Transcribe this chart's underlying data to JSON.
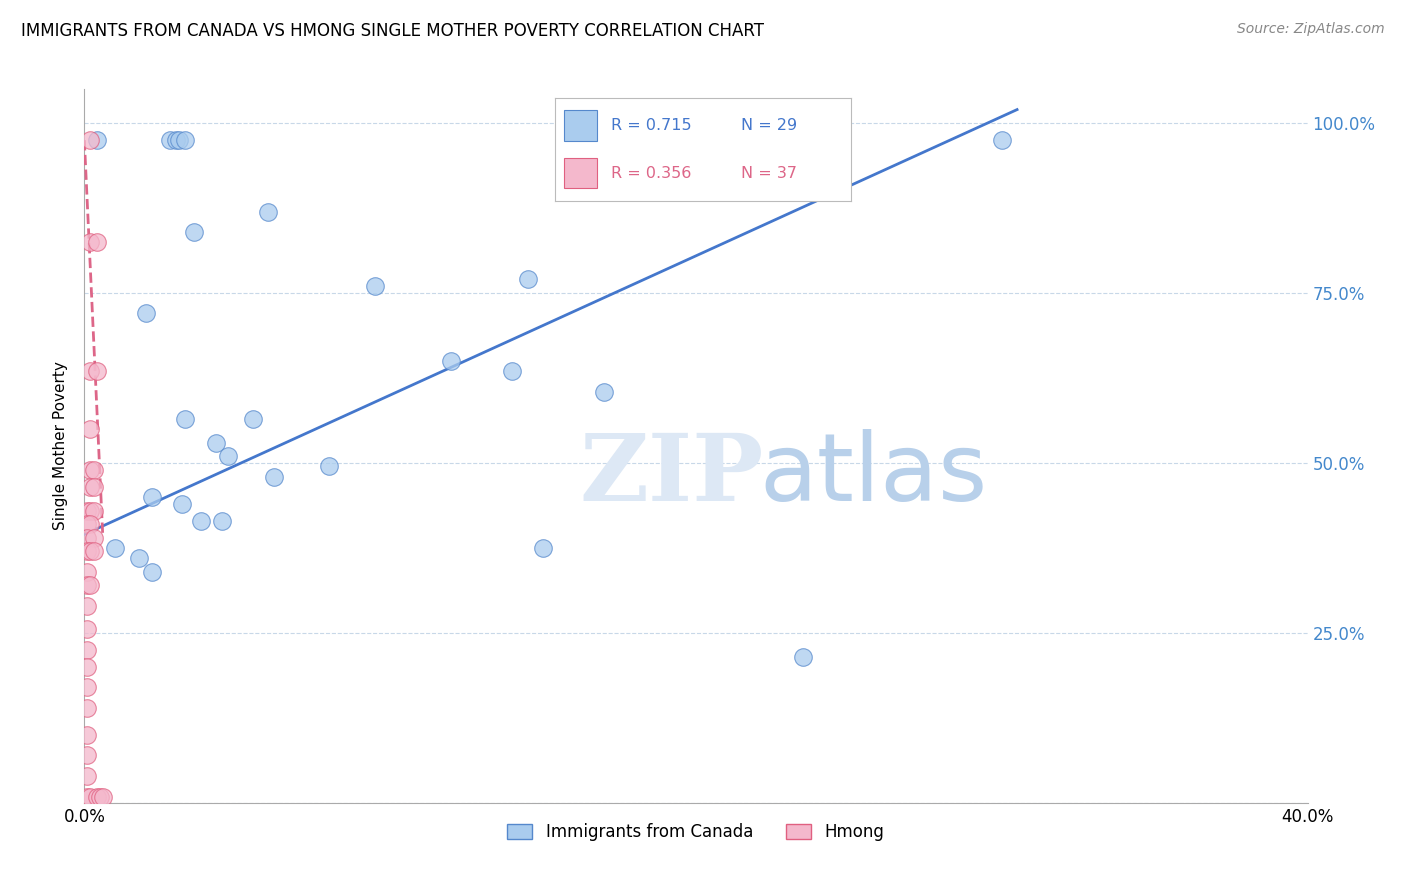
{
  "title": "IMMIGRANTS FROM CANADA VS HMONG SINGLE MOTHER POVERTY CORRELATION CHART",
  "source": "Source: ZipAtlas.com",
  "ylabel_label": "Single Mother Poverty",
  "xlim": [
    0.0,
    0.4
  ],
  "ylim": [
    0.0,
    1.05
  ],
  "legend_label1": "Immigrants from Canada",
  "legend_label2": "Hmong",
  "R1": "0.715",
  "N1": "29",
  "R2": "0.356",
  "N2": "37",
  "blue_fill": "#aaccee",
  "blue_edge": "#5588cc",
  "pink_fill": "#f4b8cc",
  "pink_edge": "#e06080",
  "blue_line_color": "#4477cc",
  "pink_line_color": "#dd6688",
  "blue_scatter": [
    [
      0.004,
      0.975
    ],
    [
      0.028,
      0.975
    ],
    [
      0.03,
      0.975
    ],
    [
      0.031,
      0.975
    ],
    [
      0.033,
      0.975
    ],
    [
      0.036,
      0.84
    ],
    [
      0.06,
      0.87
    ],
    [
      0.02,
      0.72
    ],
    [
      0.095,
      0.76
    ],
    [
      0.12,
      0.65
    ],
    [
      0.14,
      0.635
    ],
    [
      0.145,
      0.77
    ],
    [
      0.17,
      0.605
    ],
    [
      0.033,
      0.565
    ],
    [
      0.043,
      0.53
    ],
    [
      0.047,
      0.51
    ],
    [
      0.055,
      0.565
    ],
    [
      0.062,
      0.48
    ],
    [
      0.08,
      0.495
    ],
    [
      0.022,
      0.45
    ],
    [
      0.032,
      0.44
    ],
    [
      0.038,
      0.415
    ],
    [
      0.045,
      0.415
    ],
    [
      0.01,
      0.375
    ],
    [
      0.018,
      0.36
    ],
    [
      0.022,
      0.34
    ],
    [
      0.15,
      0.375
    ],
    [
      0.235,
      0.215
    ],
    [
      0.3,
      0.975
    ]
  ],
  "pink_scatter": [
    [
      0.002,
      0.975
    ],
    [
      0.002,
      0.825
    ],
    [
      0.004,
      0.825
    ],
    [
      0.002,
      0.635
    ],
    [
      0.004,
      0.635
    ],
    [
      0.002,
      0.55
    ],
    [
      0.002,
      0.49
    ],
    [
      0.003,
      0.49
    ],
    [
      0.002,
      0.465
    ],
    [
      0.003,
      0.465
    ],
    [
      0.001,
      0.43
    ],
    [
      0.002,
      0.43
    ],
    [
      0.003,
      0.43
    ],
    [
      0.001,
      0.41
    ],
    [
      0.002,
      0.41
    ],
    [
      0.001,
      0.39
    ],
    [
      0.003,
      0.39
    ],
    [
      0.001,
      0.37
    ],
    [
      0.002,
      0.37
    ],
    [
      0.003,
      0.37
    ],
    [
      0.001,
      0.34
    ],
    [
      0.001,
      0.32
    ],
    [
      0.002,
      0.32
    ],
    [
      0.001,
      0.29
    ],
    [
      0.001,
      0.255
    ],
    [
      0.001,
      0.225
    ],
    [
      0.001,
      0.2
    ],
    [
      0.001,
      0.17
    ],
    [
      0.001,
      0.14
    ],
    [
      0.001,
      0.1
    ],
    [
      0.001,
      0.07
    ],
    [
      0.001,
      0.04
    ],
    [
      0.001,
      0.008
    ],
    [
      0.002,
      0.008
    ],
    [
      0.004,
      0.008
    ],
    [
      0.005,
      0.008
    ],
    [
      0.006,
      0.008
    ]
  ],
  "blue_line_x0": 0.0,
  "blue_line_y0": 0.395,
  "blue_line_x1": 0.305,
  "blue_line_y1": 1.02,
  "pink_line_x0": 0.0,
  "pink_line_y0": 0.975,
  "pink_line_x1": 0.006,
  "pink_line_y1": 0.395,
  "background_color": "#ffffff",
  "grid_color": "#c8d8e8",
  "right_axis_color": "#4488cc"
}
